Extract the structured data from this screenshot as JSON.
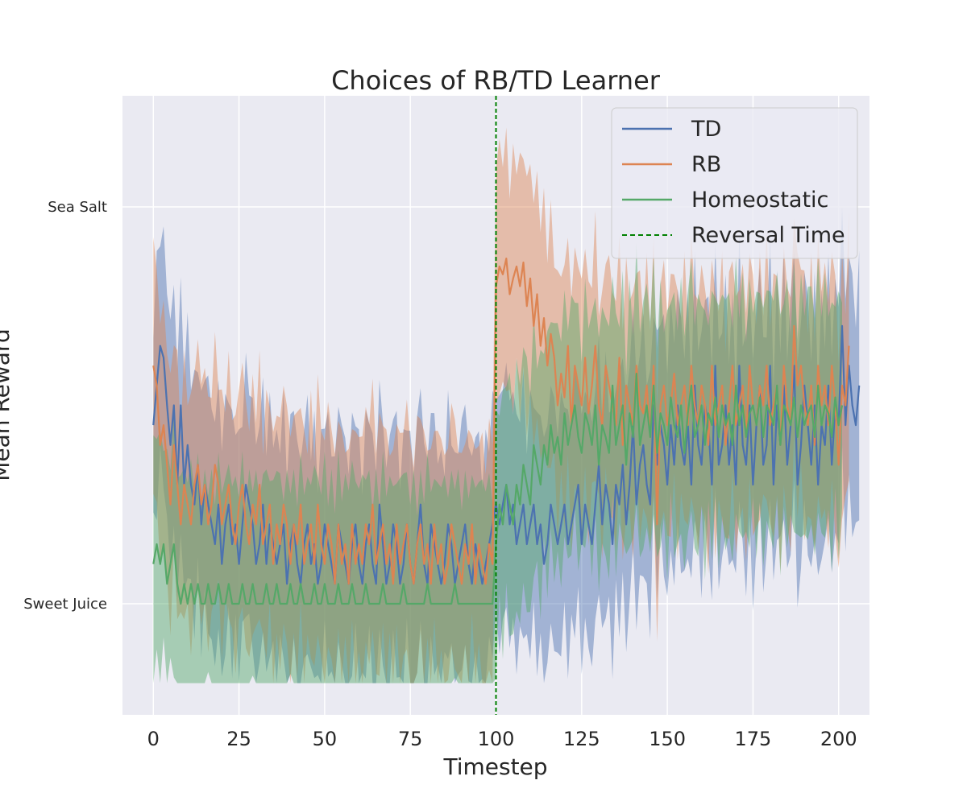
{
  "chart_data": {
    "type": "line",
    "title": "Choices of RB/TD Learner",
    "xlabel": "Timestep",
    "ylabel": "Mean Reward",
    "xlim": [
      -9,
      209
    ],
    "ylim": [
      -0.28,
      1.28
    ],
    "xticks": [
      0,
      25,
      50,
      75,
      100,
      125,
      150,
      175,
      200
    ],
    "yticks": [
      {
        "value": 0,
        "label": "Sweet Juice"
      },
      {
        "value": 1,
        "label": "Sea Salt"
      }
    ],
    "grid": true,
    "legend_position": "top-right",
    "reversal": {
      "name": "Reversal Time",
      "x": 100,
      "color": "#008000"
    },
    "series": [
      {
        "name": "TD",
        "color": "#4c72b0",
        "x_start": 0,
        "values": [
          0.45,
          0.55,
          0.65,
          0.62,
          0.5,
          0.4,
          0.5,
          0.3,
          0.5,
          0.3,
          0.4,
          0.3,
          0.25,
          0.35,
          0.2,
          0.3,
          0.25,
          0.2,
          0.15,
          0.25,
          0.1,
          0.2,
          0.25,
          0.15,
          0.2,
          0.1,
          0.2,
          0.3,
          0.25,
          0.2,
          0.1,
          0.15,
          0.25,
          0.1,
          0.2,
          0.15,
          0.1,
          0.15,
          0.2,
          0.05,
          0.15,
          0.2,
          0.1,
          0.05,
          0.15,
          0.2,
          0.1,
          0.15,
          0.05,
          0.1,
          0.2,
          0.15,
          0.1,
          0.05,
          0.2,
          0.15,
          0.1,
          0.05,
          0.15,
          0.2,
          0.1,
          0.05,
          0.15,
          0.2,
          0.1,
          0.05,
          0.25,
          0.15,
          0.05,
          0.1,
          0.2,
          0.15,
          0.05,
          0.1,
          0.2,
          0.1,
          0.05,
          0.15,
          0.25,
          0.1,
          0.05,
          0.2,
          0.15,
          0.1,
          0.05,
          0.1,
          0.2,
          0.15,
          0.05,
          0.1,
          0.15,
          0.2,
          0.1,
          0.05,
          0.15,
          0.1,
          0.05,
          0.1,
          0.15,
          0.2,
          0.25,
          0.2,
          0.25,
          0.3,
          0.2,
          0.25,
          0.15,
          0.2,
          0.25,
          0.15,
          0.2,
          0.25,
          0.15,
          0.2,
          0.1,
          0.15,
          0.25,
          0.2,
          0.15,
          0.2,
          0.25,
          0.15,
          0.2,
          0.25,
          0.3,
          0.15,
          0.25,
          0.2,
          0.15,
          0.25,
          0.35,
          0.2,
          0.3,
          0.25,
          0.15,
          0.3,
          0.25,
          0.35,
          0.2,
          0.3,
          0.45,
          0.25,
          0.35,
          0.4,
          0.3,
          0.25,
          0.5,
          0.35,
          0.45,
          0.4,
          0.3,
          0.45,
          0.35,
          0.5,
          0.4,
          0.35,
          0.45,
          0.3,
          0.55,
          0.4,
          0.35,
          0.5,
          0.45,
          0.3,
          0.6,
          0.35,
          0.4,
          0.5,
          0.35,
          0.45,
          0.3,
          0.6,
          0.4,
          0.35,
          0.5,
          0.3,
          0.45,
          0.55,
          0.35,
          0.4,
          0.6,
          0.3,
          0.5,
          0.4,
          0.55,
          0.35,
          0.45,
          0.6,
          0.3,
          0.4,
          0.55,
          0.45,
          0.35,
          0.5,
          0.3,
          0.45,
          0.4,
          0.55,
          0.35,
          0.5,
          0.45,
          0.7,
          0.45,
          0.6,
          0.5,
          0.45,
          0.55
        ]
      },
      {
        "name": "RB",
        "color": "#dd8452",
        "x_start": 0,
        "values": [
          0.6,
          0.55,
          0.4,
          0.45,
          0.35,
          0.25,
          0.4,
          0.3,
          0.2,
          0.3,
          0.25,
          0.2,
          0.3,
          0.35,
          0.25,
          0.3,
          0.2,
          0.25,
          0.35,
          0.3,
          0.2,
          0.25,
          0.3,
          0.2,
          0.15,
          0.25,
          0.3,
          0.2,
          0.15,
          0.25,
          0.2,
          0.3,
          0.15,
          0.2,
          0.25,
          0.1,
          0.2,
          0.15,
          0.25,
          0.2,
          0.1,
          0.2,
          0.15,
          0.25,
          0.1,
          0.15,
          0.2,
          0.1,
          0.25,
          0.15,
          0.1,
          0.2,
          0.15,
          0.05,
          0.2,
          0.1,
          0.15,
          0.05,
          0.2,
          0.1,
          0.15,
          0.1,
          0.2,
          0.15,
          0.25,
          0.1,
          0.15,
          0.2,
          0.1,
          0.15,
          0.05,
          0.2,
          0.1,
          0.15,
          0.2,
          0.1,
          0.05,
          0.15,
          0.2,
          0.1,
          0.15,
          0.05,
          0.2,
          0.1,
          0.15,
          0.05,
          0.1,
          0.2,
          0.15,
          0.1,
          0.05,
          0.15,
          0.1,
          0.2,
          0.05,
          0.15,
          0.1,
          0.05,
          0.15,
          0.1,
          0.8,
          0.85,
          0.83,
          0.87,
          0.78,
          0.82,
          0.85,
          0.8,
          0.86,
          0.75,
          0.82,
          0.7,
          0.78,
          0.65,
          0.72,
          0.6,
          0.68,
          0.62,
          0.5,
          0.58,
          0.52,
          0.65,
          0.45,
          0.6,
          0.55,
          0.5,
          0.62,
          0.48,
          0.55,
          0.65,
          0.5,
          0.45,
          0.6,
          0.55,
          0.5,
          0.45,
          0.62,
          0.4,
          0.55,
          0.5,
          0.45,
          0.6,
          0.5,
          0.48,
          0.55,
          0.42,
          0.6,
          0.2,
          0.5,
          0.55,
          0.45,
          0.5,
          0.58,
          0.45,
          0.5,
          0.55,
          0.45,
          0.6,
          0.5,
          0.45,
          0.55,
          0.5,
          0.4,
          0.6,
          0.45,
          0.5,
          0.55,
          0.4,
          0.5,
          0.6,
          0.45,
          0.5,
          0.55,
          0.42,
          0.6,
          0.5,
          0.45,
          0.55,
          0.5,
          0.6,
          0.45,
          0.5,
          0.55,
          0.4,
          0.6,
          0.5,
          0.45,
          0.7,
          0.55,
          0.6,
          0.5,
          0.45,
          0.55,
          0.4,
          0.6,
          0.5,
          0.55,
          0.45,
          0.6,
          0.5,
          0.35,
          0.55,
          0.5,
          0.65
        ]
      },
      {
        "name": "Homeostatic",
        "color": "#55a868",
        "x_start": 0,
        "values": [
          0.1,
          0.15,
          0.1,
          0.15,
          0.05,
          0.1,
          0.15,
          0.05,
          0.0,
          0.05,
          0.0,
          0.05,
          0.0,
          0.05,
          0.0,
          0.0,
          0.05,
          0.0,
          0.0,
          0.05,
          0.0,
          0.0,
          0.05,
          0.0,
          0.0,
          0.0,
          0.05,
          0.0,
          0.0,
          0.05,
          0.0,
          0.0,
          0.0,
          0.05,
          0.0,
          0.0,
          0.05,
          0.0,
          0.0,
          0.0,
          0.05,
          0.0,
          0.0,
          0.05,
          0.0,
          0.0,
          0.0,
          0.05,
          0.0,
          0.0,
          0.05,
          0.0,
          0.0,
          0.0,
          0.05,
          0.0,
          0.0,
          0.0,
          0.05,
          0.0,
          0.0,
          0.0,
          0.05,
          0.0,
          0.0,
          0.0,
          0.0,
          0.05,
          0.0,
          0.0,
          0.0,
          0.0,
          0.0,
          0.05,
          0.0,
          0.0,
          0.0,
          0.0,
          0.0,
          0.0,
          0.05,
          0.0,
          0.0,
          0.0,
          0.0,
          0.0,
          0.0,
          0.0,
          0.05,
          0.0,
          0.0,
          0.0,
          0.0,
          0.0,
          0.0,
          0.0,
          0.0,
          0.0,
          0.0,
          0.0,
          0.15,
          0.25,
          0.2,
          0.3,
          0.25,
          0.2,
          0.3,
          0.25,
          0.35,
          0.3,
          0.25,
          0.4,
          0.35,
          0.3,
          0.4,
          0.35,
          0.45,
          0.38,
          0.42,
          0.35,
          0.48,
          0.4,
          0.45,
          0.5,
          0.42,
          0.38,
          0.48,
          0.45,
          0.4,
          0.5,
          0.35,
          0.45,
          0.42,
          0.38,
          0.55,
          0.4,
          0.45,
          0.5,
          0.35,
          0.48,
          0.42,
          0.58,
          0.4,
          0.45,
          0.5,
          0.42,
          0.55,
          0.38,
          0.48,
          0.45,
          0.4,
          0.52,
          0.45,
          0.42,
          0.5,
          0.38,
          0.48,
          0.55,
          0.42,
          0.45,
          0.5,
          0.4,
          0.48,
          0.45,
          0.52,
          0.42,
          0.5,
          0.45,
          0.48,
          0.4,
          0.55,
          0.45,
          0.5,
          0.42,
          0.48,
          0.5,
          0.45,
          0.52,
          0.42,
          0.5,
          0.48,
          0.45,
          0.55,
          0.4,
          0.5,
          0.48,
          0.45,
          0.52,
          0.42,
          0.5,
          0.45,
          0.48,
          0.5,
          0.42,
          0.55,
          0.45,
          0.5,
          0.48,
          0.42,
          0.52,
          0.45,
          0.5
        ]
      }
    ]
  }
}
